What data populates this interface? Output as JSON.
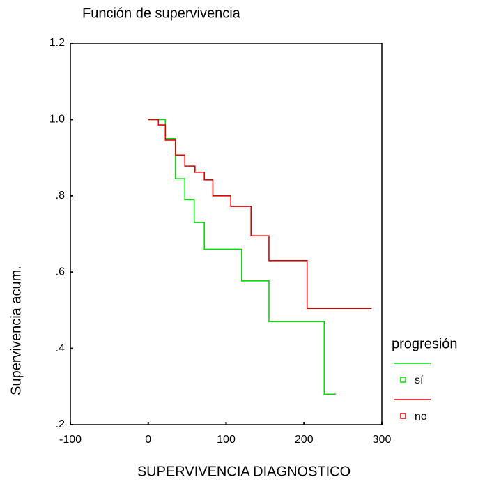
{
  "chart_data": {
    "type": "step",
    "title": "Función de supervivencia",
    "x_label": "SUPERVIVENCIA DIAGNOSTICO",
    "y_label": "Supervivencia acum.",
    "legend_title": "progresión",
    "xlim": [
      -100,
      300
    ],
    "xticks": [
      -100,
      0,
      100,
      200,
      300
    ],
    "ylim": [
      0.2,
      1.2
    ],
    "yticks": [
      {
        "value": 0.2,
        "label": ".2"
      },
      {
        "value": 0.4,
        "label": ".4"
      },
      {
        "value": 0.6,
        "label": ".6"
      },
      {
        "value": 0.8,
        "label": ".8"
      },
      {
        "value": 1.0,
        "label": "1.0"
      },
      1.2
    ],
    "series": [
      {
        "name": "sí",
        "color": "#00dd00",
        "x": [
          0,
          22,
          35,
          47,
          59,
          72,
          120,
          155,
          226,
          241
        ],
        "values": [
          1.0,
          0.95,
          0.845,
          0.79,
          0.73,
          0.66,
          0.577,
          0.47,
          0.28,
          0.28
        ]
      },
      {
        "name": "no",
        "color": "#e00000",
        "x": [
          0,
          13,
          22,
          35,
          47,
          60,
          72,
          83,
          106,
          132,
          155,
          204,
          287
        ],
        "values": [
          1.0,
          0.986,
          0.946,
          0.907,
          0.878,
          0.862,
          0.842,
          0.8,
          0.772,
          0.695,
          0.63,
          0.505,
          0.505
        ]
      }
    ]
  }
}
